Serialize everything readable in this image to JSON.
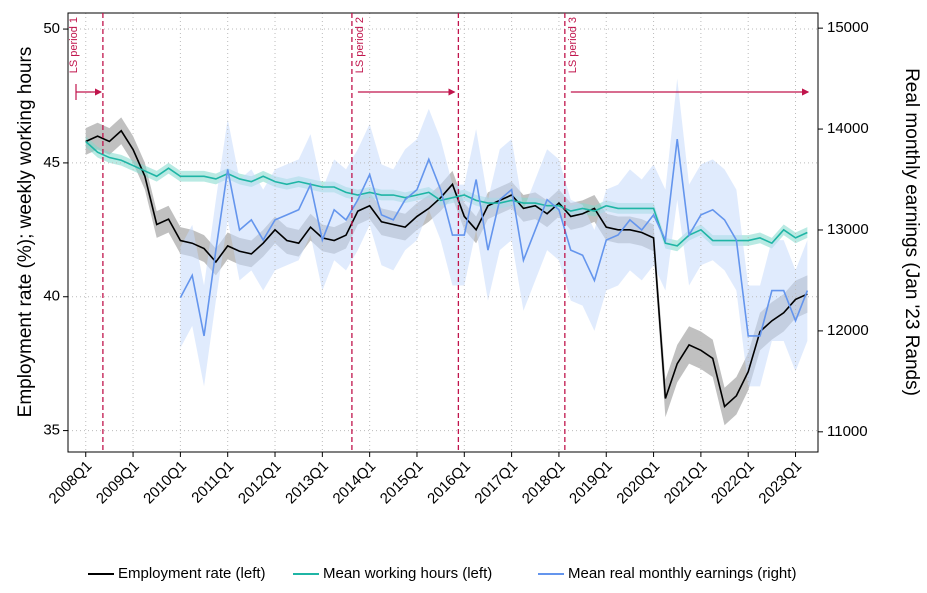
{
  "chart_data": {
    "type": "line",
    "ylabel": "Employment rate (%); weekly working hours",
    "y2label": "Real monthly earnings (Jan '23 Rands)",
    "categories": [
      "2008Q1",
      null,
      null,
      null,
      "2009Q1",
      null,
      null,
      null,
      "2010Q1",
      null,
      null,
      null,
      "2011Q1",
      null,
      null,
      null,
      "2012Q1",
      null,
      null,
      null,
      "2013Q1",
      null,
      null,
      null,
      "2014Q1",
      null,
      null,
      null,
      "2015Q1",
      null,
      null,
      null,
      "2016Q1",
      null,
      null,
      null,
      "2017Q1",
      null,
      null,
      null,
      "2018Q1",
      null,
      null,
      null,
      "2019Q1",
      null,
      null,
      null,
      "2020Q1",
      null,
      null,
      null,
      "2021Q1",
      null,
      null,
      null,
      "2022Q1",
      null,
      null,
      null,
      "2023Q1",
      null
    ],
    "ylim": [
      34.2,
      50.6
    ],
    "yticks": [
      35,
      40,
      45,
      50
    ],
    "y2lim": [
      10800,
      15150
    ],
    "y2ticks": [
      11000,
      12000,
      13000,
      14000,
      15000
    ],
    "grid": true,
    "annotations": [
      "LS period 1",
      "LS period 2",
      "LS period 3"
    ],
    "series": [
      {
        "name": "Employment rate (left)",
        "color": "#000000",
        "band_color": "#8c8c8c",
        "axis": "y",
        "values": [
          45.8,
          46.0,
          45.8,
          46.2,
          45.5,
          44.5,
          42.7,
          42.9,
          42.1,
          42.0,
          41.8,
          41.3,
          41.9,
          41.7,
          41.6,
          42.0,
          42.5,
          42.1,
          42.0,
          42.6,
          42.2,
          42.1,
          42.3,
          43.2,
          43.4,
          42.8,
          42.7,
          42.6,
          43.0,
          43.3,
          43.7,
          44.2,
          43.0,
          42.5,
          43.4,
          43.6,
          43.8,
          43.3,
          43.4,
          43.1,
          43.5,
          43.0,
          43.1,
          43.3,
          42.6,
          42.5,
          42.5,
          42.4,
          42.2,
          36.2,
          37.5,
          38.2,
          38.0,
          37.7,
          35.9,
          36.3,
          37.2,
          38.7,
          39.1,
          39.4,
          39.9,
          40.1
        ],
        "lower": [
          45.3,
          45.5,
          45.3,
          45.7,
          45.0,
          44.0,
          42.2,
          42.4,
          41.6,
          41.5,
          41.3,
          40.8,
          41.4,
          41.2,
          41.1,
          41.5,
          42.0,
          41.6,
          41.5,
          42.1,
          41.7,
          41.6,
          41.8,
          42.7,
          42.9,
          42.3,
          42.2,
          42.1,
          42.5,
          42.8,
          43.2,
          43.7,
          42.5,
          42.0,
          42.9,
          43.1,
          43.3,
          42.8,
          42.9,
          42.6,
          43.0,
          42.5,
          42.6,
          42.8,
          42.1,
          42.0,
          42.0,
          41.9,
          41.7,
          35.5,
          36.8,
          37.5,
          37.3,
          37.0,
          35.2,
          35.6,
          36.5,
          38.0,
          38.4,
          38.7,
          39.2,
          39.4
        ],
        "upper": [
          46.3,
          46.5,
          46.3,
          46.7,
          46.0,
          45.0,
          43.2,
          43.4,
          42.6,
          42.5,
          42.3,
          41.8,
          42.4,
          42.2,
          42.1,
          42.5,
          43.0,
          42.6,
          42.5,
          43.1,
          42.7,
          42.6,
          42.8,
          43.7,
          43.9,
          43.3,
          43.2,
          43.1,
          43.5,
          43.8,
          44.2,
          44.7,
          43.5,
          43.0,
          43.9,
          44.1,
          44.3,
          43.8,
          43.9,
          43.6,
          44.0,
          43.5,
          43.6,
          43.8,
          43.1,
          43.0,
          43.0,
          42.9,
          42.7,
          36.9,
          38.2,
          38.9,
          38.7,
          38.4,
          36.6,
          37.0,
          37.9,
          39.4,
          39.8,
          40.1,
          40.6,
          40.8
        ]
      },
      {
        "name": "Mean working hours (left)",
        "color": "#1fb5a5",
        "band_color": "#7fd8cc",
        "axis": "y",
        "values": [
          45.8,
          45.4,
          45.2,
          45.1,
          44.9,
          44.7,
          44.5,
          44.8,
          44.5,
          44.5,
          44.5,
          44.4,
          44.6,
          44.4,
          44.3,
          44.5,
          44.3,
          44.2,
          44.3,
          44.2,
          44.1,
          44.1,
          43.9,
          43.8,
          43.9,
          43.8,
          43.8,
          43.7,
          43.8,
          43.9,
          43.6,
          43.7,
          43.8,
          43.6,
          43.5,
          43.5,
          43.6,
          43.5,
          43.5,
          43.4,
          43.4,
          43.2,
          43.3,
          43.2,
          43.4,
          43.3,
          43.3,
          43.3,
          43.3,
          42.0,
          41.9,
          42.3,
          42.5,
          42.1,
          42.1,
          42.1,
          42.1,
          42.2,
          42.0,
          42.5,
          42.2,
          42.4
        ],
        "lower": [
          45.6,
          45.2,
          45.0,
          44.9,
          44.7,
          44.5,
          44.3,
          44.6,
          44.3,
          44.3,
          44.3,
          44.2,
          44.4,
          44.2,
          44.1,
          44.3,
          44.1,
          44.0,
          44.1,
          44.0,
          43.9,
          43.9,
          43.7,
          43.6,
          43.7,
          43.6,
          43.6,
          43.5,
          43.6,
          43.7,
          43.4,
          43.5,
          43.6,
          43.4,
          43.3,
          43.3,
          43.4,
          43.3,
          43.3,
          43.2,
          43.2,
          43.0,
          43.1,
          43.0,
          43.2,
          43.1,
          43.1,
          43.1,
          43.1,
          41.8,
          41.7,
          42.1,
          42.3,
          41.9,
          41.9,
          41.9,
          41.9,
          42.0,
          41.8,
          42.3,
          42.0,
          42.2
        ],
        "upper": [
          46.0,
          45.6,
          45.4,
          45.3,
          45.1,
          44.9,
          44.7,
          45.0,
          44.7,
          44.7,
          44.7,
          44.6,
          44.8,
          44.6,
          44.5,
          44.7,
          44.5,
          44.4,
          44.5,
          44.4,
          44.3,
          44.3,
          44.1,
          44.0,
          44.1,
          44.0,
          44.0,
          43.9,
          44.0,
          44.1,
          43.8,
          43.9,
          44.0,
          43.8,
          43.7,
          43.7,
          43.8,
          43.7,
          43.7,
          43.6,
          43.6,
          43.4,
          43.5,
          43.4,
          43.6,
          43.5,
          43.5,
          43.5,
          43.5,
          42.2,
          42.1,
          42.5,
          42.7,
          42.3,
          42.3,
          42.3,
          42.3,
          42.4,
          42.2,
          42.7,
          42.4,
          42.6
        ]
      },
      {
        "name": "Mean real monthly earnings (right)",
        "color": "#6495ed",
        "band_color": "#c6dafb",
        "axis": "y2",
        "values": [
          null,
          null,
          null,
          null,
          null,
          null,
          null,
          null,
          12330,
          12550,
          11950,
          12800,
          13600,
          13000,
          13100,
          12900,
          13100,
          13150,
          13200,
          13450,
          12900,
          13200,
          13100,
          13300,
          13550,
          13150,
          13100,
          13300,
          13400,
          13700,
          13400,
          12950,
          12950,
          13500,
          12800,
          13300,
          13400,
          12700,
          13000,
          13300,
          13200,
          12800,
          12750,
          12500,
          12900,
          12950,
          13100,
          13000,
          13150,
          12900,
          13900,
          12950,
          13150,
          13200,
          13100,
          12900,
          11950,
          11950,
          12400,
          12400,
          12100,
          12400
        ],
        "lower": [
          null,
          null,
          null,
          null,
          null,
          null,
          null,
          null,
          11830,
          12050,
          11450,
          12300,
          13100,
          12500,
          12600,
          12400,
          12600,
          12650,
          12700,
          12950,
          12400,
          12700,
          12600,
          12800,
          13050,
          12650,
          12600,
          12800,
          12900,
          13200,
          12900,
          12450,
          12450,
          13000,
          12300,
          12800,
          12900,
          12200,
          12500,
          12800,
          12700,
          12300,
          12250,
          12000,
          12400,
          12450,
          12600,
          12500,
          12650,
          12400,
          13300,
          12450,
          12650,
          12700,
          12600,
          12400,
          11450,
          11450,
          11900,
          11900,
          11600,
          11900
        ],
        "upper": [
          null,
          null,
          null,
          null,
          null,
          null,
          null,
          null,
          12830,
          13050,
          12450,
          13300,
          14100,
          13500,
          13600,
          13400,
          13600,
          13650,
          13700,
          13950,
          13400,
          13700,
          13600,
          13800,
          14050,
          13650,
          13600,
          13800,
          13900,
          14200,
          13900,
          13450,
          13450,
          14000,
          13300,
          13800,
          13900,
          13200,
          13500,
          13800,
          13700,
          13300,
          13250,
          13000,
          13400,
          13450,
          13600,
          13500,
          13650,
          13400,
          14500,
          13450,
          13650,
          13700,
          13600,
          13400,
          12450,
          12450,
          12900,
          12900,
          12600,
          12900
        ]
      }
    ]
  }
}
